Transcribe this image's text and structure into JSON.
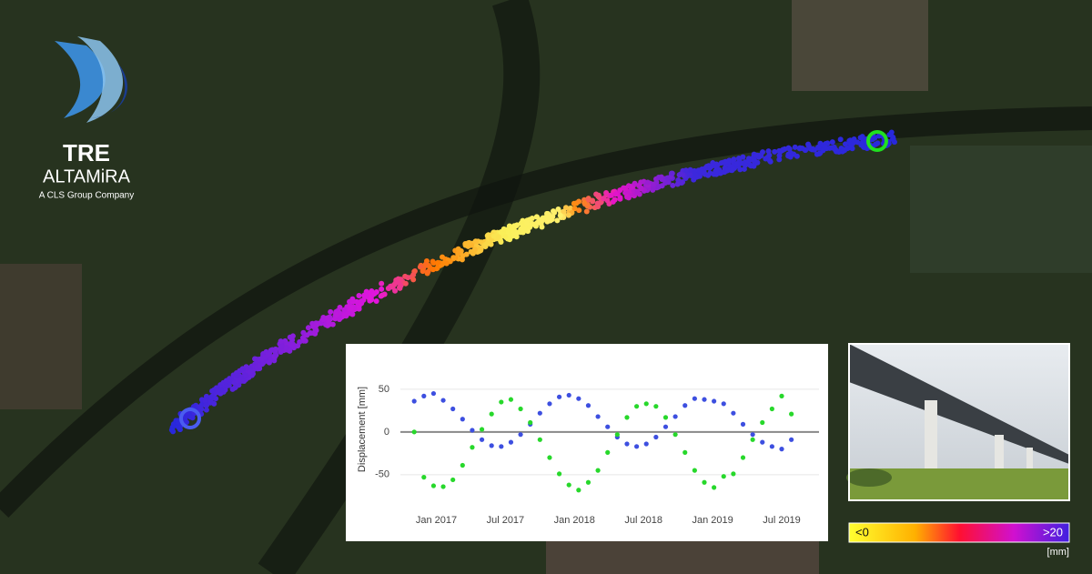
{
  "logo": {
    "brand": "TRE",
    "name": "ALTAMiRA",
    "tagline": "A CLS Group Company"
  },
  "chart_data": {
    "type": "scatter",
    "y_label": "Displacement [mm]",
    "x": [
      2016.84,
      2016.91,
      2016.98,
      2017.05,
      2017.12,
      2017.19,
      2017.26,
      2017.33,
      2017.4,
      2017.47,
      2017.54,
      2017.61,
      2017.68,
      2017.75,
      2017.82,
      2017.89,
      2017.96,
      2018.03,
      2018.1,
      2018.17,
      2018.24,
      2018.31,
      2018.38,
      2018.45,
      2018.52,
      2018.59,
      2018.66,
      2018.73,
      2018.8,
      2018.87,
      2018.94,
      2019.01,
      2019.08,
      2019.15,
      2019.22,
      2019.29,
      2019.36,
      2019.43,
      2019.5,
      2019.57
    ],
    "series": [
      {
        "color": "#3d4fe0",
        "values": [
          36,
          42,
          45,
          37,
          27,
          15,
          2,
          -9,
          -16,
          -17,
          -12,
          -3,
          9,
          22,
          33,
          41,
          43,
          39,
          31,
          18,
          6,
          -6,
          -14,
          -17,
          -14,
          -6,
          6,
          18,
          31,
          39,
          38,
          36,
          33,
          22,
          9,
          -3,
          -12,
          -17,
          -20,
          -9
        ]
      },
      {
        "color": "#27d82b",
        "values": [
          0,
          -53,
          -63,
          -64,
          -56,
          -39,
          -18,
          3,
          21,
          35,
          38,
          27,
          11,
          -9,
          -30,
          -49,
          -62,
          -68,
          -59,
          -45,
          -24,
          -3,
          17,
          30,
          33,
          30,
          17,
          -3,
          -24,
          -45,
          -59,
          -65,
          -52,
          -49,
          -30,
          -9,
          11,
          27,
          42,
          21
        ]
      }
    ],
    "xlim": [
      2016.74,
      2019.77
    ],
    "xticks": [
      {
        "value": 2017.0,
        "label": "Jan 2017"
      },
      {
        "value": 2017.5,
        "label": "Jul 2017"
      },
      {
        "value": 2018.0,
        "label": "Jan 2018"
      },
      {
        "value": 2018.5,
        "label": "Jul 2018"
      },
      {
        "value": 2019.0,
        "label": "Jan 2019"
      },
      {
        "value": 2019.5,
        "label": "Jul 2019"
      }
    ],
    "ylim": [
      -80,
      85
    ],
    "yticks": [
      -50,
      0,
      50
    ],
    "grid": true
  },
  "colorbar": {
    "min_label": "<0",
    "max_label": ">20",
    "unit": "[mm]"
  }
}
